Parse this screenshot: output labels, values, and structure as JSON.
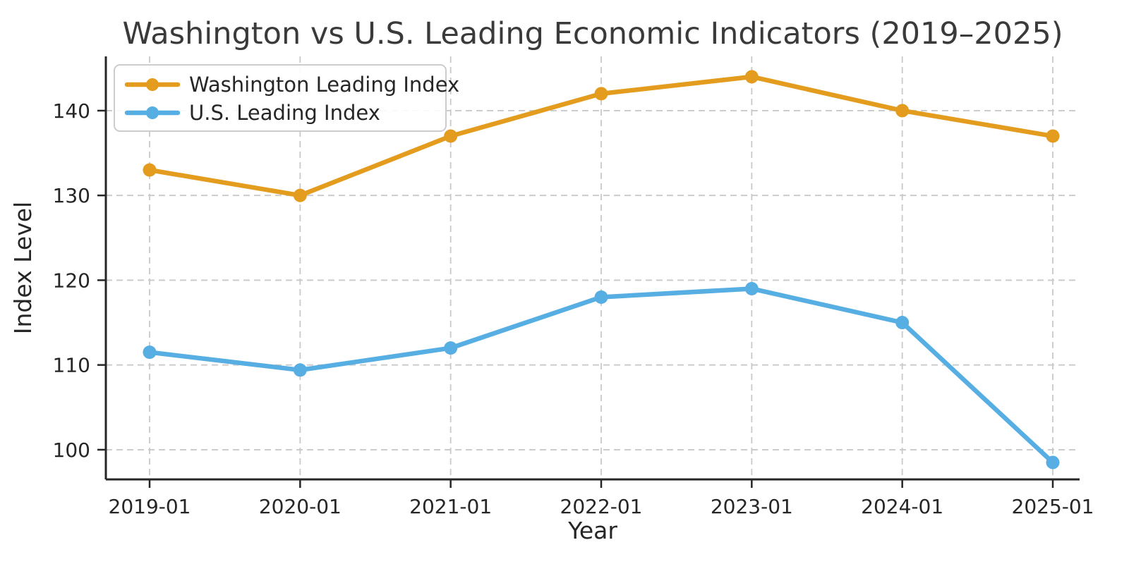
{
  "chart_data": {
    "type": "line",
    "title": "Washington vs U.S. Leading Economic Indicators (2019–2025)",
    "xlabel": "Year",
    "ylabel": "Index Level",
    "categories": [
      "2019-01",
      "2020-01",
      "2021-01",
      "2022-01",
      "2023-01",
      "2024-01",
      "2025-01"
    ],
    "series": [
      {
        "name": "Washington Leading Index",
        "color": "#E39C1E",
        "values": [
          133,
          130,
          137,
          142,
          144,
          140,
          137
        ]
      },
      {
        "name": "U.S. Leading Index",
        "color": "#56AEE2",
        "values": [
          111.5,
          109.4,
          112,
          118,
          119,
          115,
          98.5
        ]
      }
    ],
    "yticks": [
      100,
      110,
      120,
      130,
      140
    ],
    "ylim": [
      96.5,
      146.4
    ],
    "grid": true,
    "grid_style": "dashed",
    "legend_position": "upper left",
    "marker": "circle"
  },
  "colors": {
    "background": "#ffffff",
    "grid": "#c9c9c9",
    "spine": "#262626",
    "tick": "#262626",
    "title_text": "#3a3a3a",
    "legend_border": "#cccccc",
    "legend_fill": "#ffffff"
  }
}
